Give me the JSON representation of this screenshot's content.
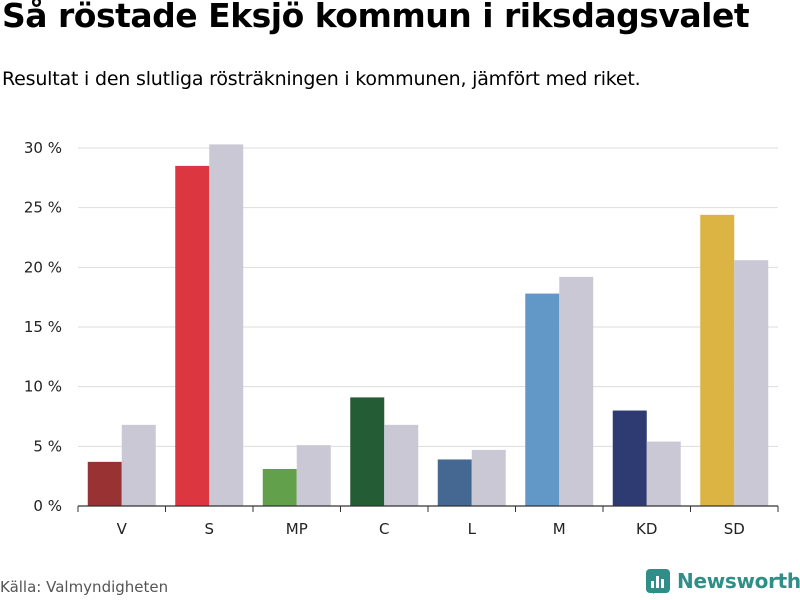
{
  "header": {
    "title": "Så röstade Eksjö kommun i riksdagsvalet",
    "subtitle": "Resultat i den slutliga rösträkningen i kommunen, jämfört med riket."
  },
  "footer": {
    "source": "Källa: Valmyndigheten",
    "brand": "Newsworthy"
  },
  "colors": {
    "comparison": "#c9c8d4",
    "grid": "#dddddd",
    "brand": "#2f8f88"
  },
  "icons": {
    "brand_logo": "newsworthy-logo-icon"
  },
  "chart_data": {
    "type": "bar",
    "title": "Så röstade Eksjö kommun i riksdagsvalet",
    "subtitle": "Resultat i den slutliga rösträkningen i kommunen, jämfört med riket.",
    "xlabel": "",
    "ylabel": "",
    "ylim": [
      0,
      30
    ],
    "yticks": [
      0,
      5,
      10,
      15,
      20,
      25,
      30
    ],
    "ytick_labels": [
      "0 %",
      "5 %",
      "10 %",
      "15 %",
      "20 %",
      "25 %",
      "30 %"
    ],
    "grid": true,
    "legend": "none",
    "categories": [
      "V",
      "S",
      "MP",
      "C",
      "L",
      "M",
      "KD",
      "SD"
    ],
    "series": [
      {
        "values": [
          3.7,
          28.5,
          3.1,
          9.1,
          3.9,
          17.8,
          8.0,
          24.4
        ],
        "colors": [
          "#993333",
          "#dc3640",
          "#63a04c",
          "#245c36",
          "#456892",
          "#6298c8",
          "#2d3b72",
          "#dcb444"
        ]
      },
      {
        "values": [
          6.8,
          30.3,
          5.1,
          6.8,
          4.7,
          19.2,
          5.4,
          20.6
        ],
        "color": "#c9c8d4"
      }
    ]
  }
}
